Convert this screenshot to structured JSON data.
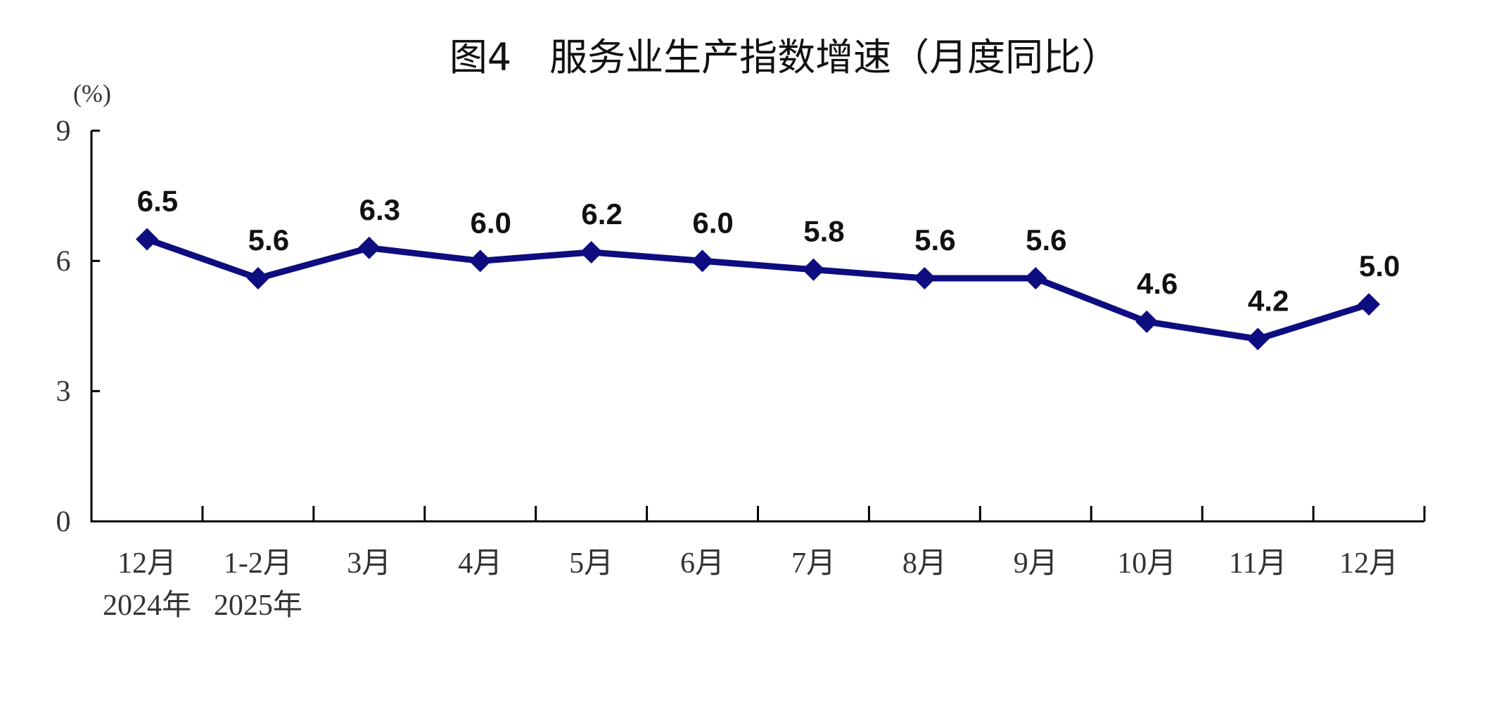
{
  "chart_data": {
    "type": "line",
    "title": "图4　服务业生产指数增速（月度同比）",
    "ylabel": "(%)",
    "xlabel": "",
    "ylim": [
      0,
      9
    ],
    "yticks": [
      0,
      3,
      6,
      9
    ],
    "grid": false,
    "categories": [
      "12月",
      "1-2月",
      "3月",
      "4月",
      "5月",
      "6月",
      "7月",
      "8月",
      "9月",
      "10月",
      "11月",
      "12月"
    ],
    "year_labels": [
      {
        "index": 0,
        "text": "2024年"
      },
      {
        "index": 1,
        "text": "2025年"
      }
    ],
    "values": [
      6.5,
      5.6,
      6.3,
      6.0,
      6.2,
      6.0,
      5.8,
      5.6,
      5.6,
      4.6,
      4.2,
      5.0
    ],
    "data_labels": [
      "6.5",
      "5.6",
      "6.3",
      "6.0",
      "6.2",
      "6.0",
      "5.8",
      "5.6",
      "5.6",
      "4.6",
      "4.2",
      "5.0"
    ],
    "line_color": "#0d0d80",
    "marker": "diamond"
  }
}
